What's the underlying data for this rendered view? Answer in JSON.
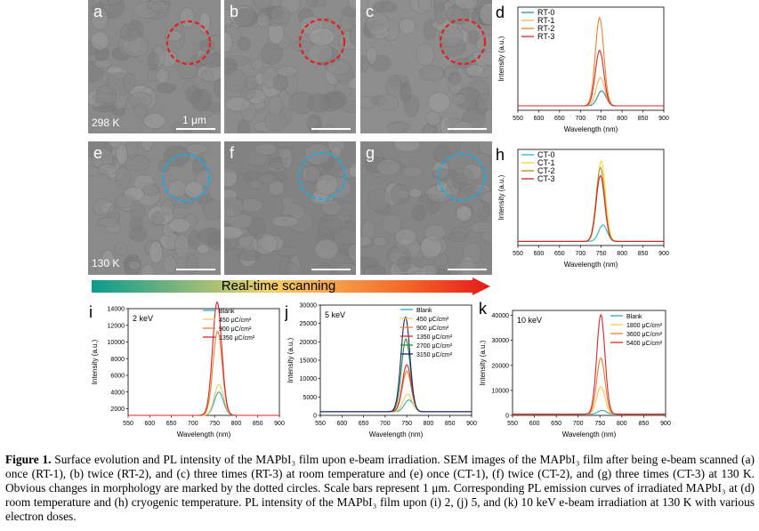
{
  "sem": {
    "rt": [
      {
        "letter": "a",
        "temp": "298 K",
        "scale": "1 μm",
        "circle": "#e0201f"
      },
      {
        "letter": "b",
        "temp": "",
        "scale": "",
        "circle": "#e0201f"
      },
      {
        "letter": "c",
        "temp": "",
        "scale": "",
        "circle": "#e0201f"
      }
    ],
    "ct": [
      {
        "letter": "e",
        "temp": "130 K",
        "scale": "",
        "circle": "#1ea8e0"
      },
      {
        "letter": "f",
        "temp": "",
        "scale": "",
        "circle": "#1ea8e0"
      },
      {
        "letter": "g",
        "temp": "",
        "scale": "",
        "circle": "#1ea8e0"
      }
    ]
  },
  "arrow": {
    "label": "Real-time scanning",
    "colors": [
      "#0a9b8e",
      "#f5d06a",
      "#f36a2a",
      "#e51a1a"
    ]
  },
  "chart_data": [
    {
      "id": "d",
      "letter": "d",
      "type": "line",
      "xlabel": "Wavelength (nm)",
      "ylabel": "Intensity (a.u.)",
      "xlim": [
        550,
        900
      ],
      "xticks": [
        550,
        600,
        650,
        700,
        750,
        800,
        850,
        900
      ],
      "series": [
        {
          "name": "RT-0",
          "color": "#2a8fa8",
          "peak": 751,
          "amp": 0.17,
          "width": 24
        },
        {
          "name": "RT-1",
          "color": "#e8b84a",
          "peak": 748,
          "amp": 0.32,
          "width": 24
        },
        {
          "name": "RT-2",
          "color": "#f07f2a",
          "peak": 746,
          "amp": 1.0,
          "width": 24
        },
        {
          "name": "RT-3",
          "color": "#d8262a",
          "peak": 746,
          "amp": 0.63,
          "width": 24
        }
      ]
    },
    {
      "id": "h",
      "letter": "h",
      "type": "line",
      "xlabel": "Wavelength (nm)",
      "ylabel": "Intensity (a.u.)",
      "xlim": [
        550,
        900
      ],
      "xticks": [
        550,
        600,
        650,
        700,
        750,
        800,
        850,
        900
      ],
      "series": [
        {
          "name": "CT-0",
          "color": "#2ab2c8",
          "peak": 754,
          "amp": 0.2,
          "width": 24
        },
        {
          "name": "CT-1",
          "color": "#f5d23a",
          "peak": 750,
          "amp": 0.98,
          "width": 24
        },
        {
          "name": "CT-2",
          "color": "#b88a1a",
          "peak": 748,
          "amp": 0.9,
          "width": 24
        },
        {
          "name": "CT-3",
          "color": "#c8262a",
          "peak": 748,
          "amp": 0.8,
          "width": 24
        }
      ]
    },
    {
      "id": "i",
      "letter": "i",
      "type": "line",
      "energy": "2 keV",
      "xlabel": "Wavelength (nm)",
      "ylabel": "Intensity (a.u.)",
      "xlim": [
        550,
        900
      ],
      "xticks": [
        550,
        600,
        650,
        700,
        750,
        800,
        850,
        900
      ],
      "ylim": [
        1200,
        14000
      ],
      "yticks": [
        2000,
        4000,
        6000,
        8000,
        10000,
        12000,
        14000
      ],
      "baseline": 1200,
      "series": [
        {
          "name": "Blank",
          "color": "#2aa8b8",
          "peak": 760,
          "amp": 2800,
          "width": 25
        },
        {
          "name": "450 μC/cm²",
          "color": "#f2c85a",
          "peak": 760,
          "amp": 3700,
          "width": 25
        },
        {
          "name": "900 μC/cm²",
          "color": "#f07f2a",
          "peak": 757,
          "amp": 10100,
          "width": 25
        },
        {
          "name": "1350 μC/cm²",
          "color": "#d8262a",
          "peak": 756,
          "amp": 13600,
          "width": 25
        }
      ]
    },
    {
      "id": "j",
      "letter": "j",
      "type": "line",
      "energy": "5 keV",
      "xlabel": "Wavelength (nm)",
      "ylabel": "Intensity (a.u.)",
      "xlim": [
        550,
        900
      ],
      "xticks": [
        550,
        600,
        650,
        700,
        750,
        800,
        850,
        900
      ],
      "ylim": [
        0,
        30000
      ],
      "yticks": [
        0,
        5000,
        10000,
        15000,
        20000,
        25000,
        30000
      ],
      "baseline": 1000,
      "series": [
        {
          "name": "Blank",
          "color": "#2aa8b8",
          "peak": 755,
          "amp": 3200,
          "width": 24
        },
        {
          "name": "450 μC/cm²",
          "color": "#f2c85a",
          "peak": 752,
          "amp": 4800,
          "width": 24
        },
        {
          "name": "900 μC/cm²",
          "color": "#f07f2a",
          "peak": 750,
          "amp": 11000,
          "width": 24
        },
        {
          "name": "1350 μC/cm²",
          "color": "#d8262a",
          "peak": 750,
          "amp": 12800,
          "width": 24
        },
        {
          "name": "2700 μC/cm²",
          "color": "#2e8a3a",
          "peak": 748,
          "amp": 19800,
          "width": 24
        },
        {
          "name": "3150 μC/cm²",
          "color": "#1a2a7a",
          "peak": 747,
          "amp": 25800,
          "width": 24
        }
      ]
    },
    {
      "id": "k",
      "letter": "k",
      "type": "line",
      "energy": "10 keV",
      "xlabel": "Wavelength (nm)",
      "ylabel": "Intensity (a.u.)",
      "xlim": [
        550,
        900
      ],
      "xticks": [
        550,
        600,
        650,
        700,
        750,
        800,
        850,
        900
      ],
      "ylim": [
        0,
        42000
      ],
      "yticks": [
        0,
        10000,
        20000,
        30000,
        40000
      ],
      "baseline": 500,
      "series": [
        {
          "name": "Blank",
          "color": "#2aa8b8",
          "peak": 755,
          "amp": 1500,
          "width": 22
        },
        {
          "name": "1800 μC/cm²",
          "color": "#f2c85a",
          "peak": 752,
          "amp": 11000,
          "width": 22
        },
        {
          "name": "3600 μC/cm²",
          "color": "#f07f2a",
          "peak": 752,
          "amp": 22500,
          "width": 22
        },
        {
          "name": "5400 μC/cm²",
          "color": "#d8262a",
          "peak": 752,
          "amp": 39800,
          "width": 22
        }
      ]
    }
  ],
  "caption": {
    "fig": "Figure 1.",
    "text": "Surface evolution and PL intensity of the MAPbI₃ film upon e-beam irradiation. SEM images of the MAPbI₃ film after being e-beam scanned (a) once (RT-1), (b) twice (RT-2), and (c) three times (RT-3) at room temperature and (e) once (CT-1), (f) twice (CT-2), and (g) three times (CT-3) at 130 K. Obvious changes in morphology are marked by the dotted circles. Scale bars represent 1 μm. Corresponding PL emission curves of irradiated MAPbI₃ at (d) room temperature and (h) cryogenic temperature. PL intensity of the MAPbI₃ film upon (i) 2, (j) 5, and (k) 10 keV e-beam irradiation at 130 K with various electron doses."
  }
}
